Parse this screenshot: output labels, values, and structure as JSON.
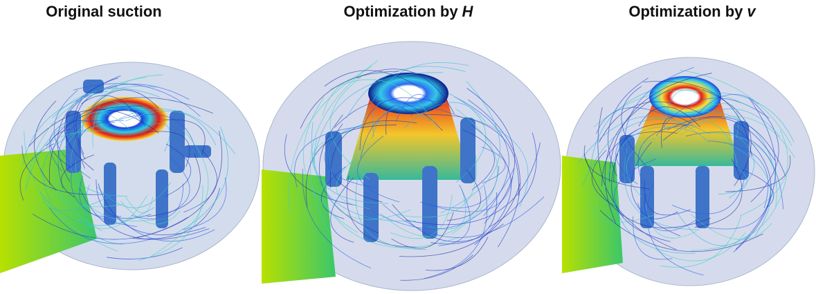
{
  "panels": [
    {
      "title": "Original suction"
    },
    {
      "title": "Optimization by",
      "variable": "H"
    },
    {
      "title": "Optimization by",
      "variable": "v"
    }
  ]
}
